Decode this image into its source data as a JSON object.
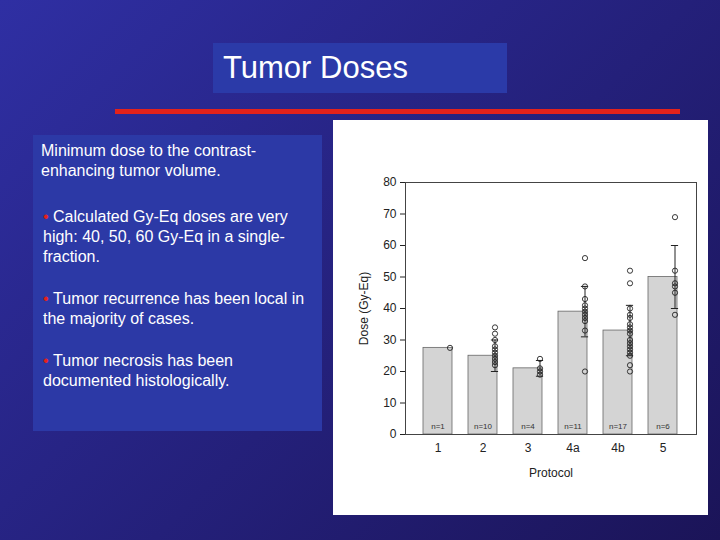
{
  "chart_data": {
    "type": "bar",
    "title": "Tumor Doses",
    "subtitle": "Minimum dose to the contrast-enhancing tumor volume.",
    "annotations": [
      "Calculated Gy-Eq doses are very high: 40, 50, 60 Gy-Eq in a single-fraction.",
      "Tumor recurrence has been local in the majority of cases.",
      "Tumor necrosis has been documented histologically."
    ],
    "x_label": "Protocol",
    "y_label": "Dose (Gy-Eq)",
    "categories": [
      "1",
      "2",
      "3",
      "4a",
      "4b",
      "5"
    ],
    "values": [
      27.5,
      25,
      21,
      39,
      33,
      50
    ],
    "errors": [
      null,
      5,
      2.5,
      8,
      8,
      10
    ],
    "n_labels": [
      "n=1",
      "n=10",
      "n=4",
      "n=11",
      "n=17",
      "n=6"
    ],
    "points": [
      [
        27.5
      ],
      [
        22,
        23,
        24,
        25,
        26,
        27,
        28,
        30,
        32,
        34
      ],
      [
        19,
        20,
        21,
        24
      ],
      [
        20,
        33,
        36,
        37,
        38,
        39,
        40,
        41,
        43,
        47,
        56
      ],
      [
        20,
        22,
        25,
        26,
        27,
        28,
        29,
        30,
        32,
        33,
        34,
        35,
        37,
        38,
        40,
        48,
        52
      ],
      [
        38,
        45,
        47,
        48,
        52,
        69
      ]
    ],
    "color": "#d4d4d4",
    "ylim": [
      0,
      80
    ],
    "yticks": [
      0,
      10,
      20,
      30,
      40,
      50,
      60,
      70,
      80
    ],
    "grid": false
  }
}
